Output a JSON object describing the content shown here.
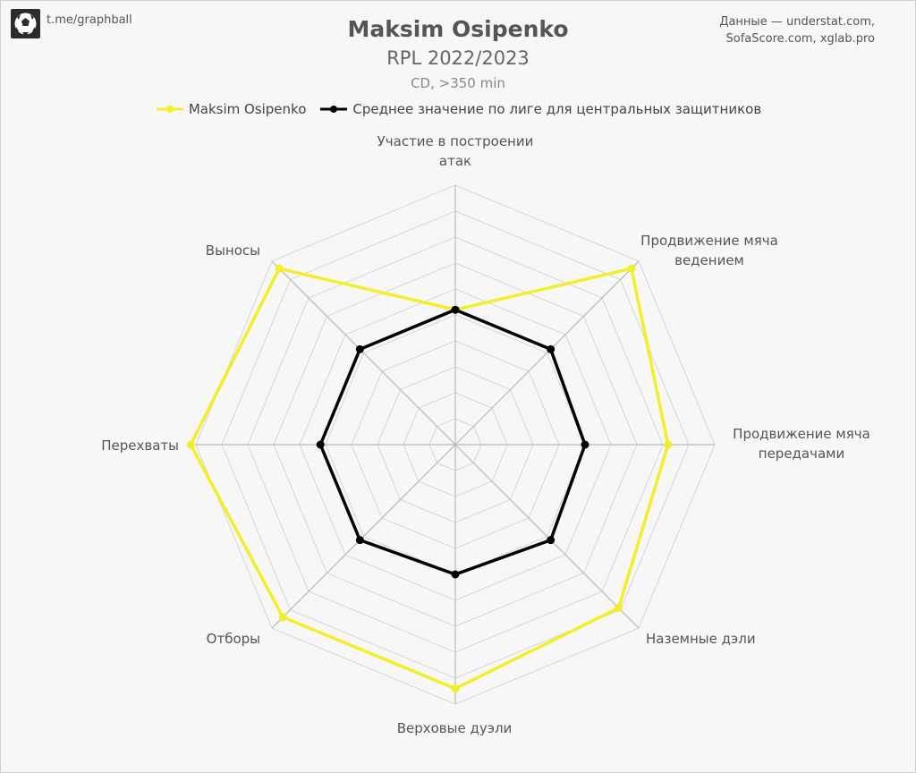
{
  "header": {
    "handle": "t.me/graphball",
    "source_line1": "Данные — understat.com,",
    "source_line2": "SofaScore.com, xglab.pro"
  },
  "chart_data": {
    "type": "radar",
    "title": "Maksim Osipenko",
    "subtitle": "RPL 2022/2023",
    "note": "CD, >350 min",
    "legend_position": "top",
    "grid": true,
    "scale_max": 10,
    "grid_levels": 10,
    "axes": [
      {
        "label_lines": [
          "Участие в построении",
          "атак"
        ]
      },
      {
        "label_lines": [
          "Продвижение мяча",
          "ведением"
        ]
      },
      {
        "label_lines": [
          "Продвижение мяча",
          "передачами"
        ]
      },
      {
        "label_lines": [
          "Наземные дэли"
        ]
      },
      {
        "label_lines": [
          "Верховые дуэли"
        ]
      },
      {
        "label_lines": [
          "Отборы"
        ]
      },
      {
        "label_lines": [
          "Перехваты"
        ]
      },
      {
        "label_lines": [
          "Выносы"
        ]
      }
    ],
    "series": [
      {
        "name": "Maksim Osipenko",
        "color": "#f2ee2c",
        "values": [
          5.2,
          9.6,
          8.2,
          8.9,
          9.4,
          9.4,
          10.2,
          9.6
        ]
      },
      {
        "name": "Среднее значение по лиге для центральных защитников",
        "color": "#000000",
        "values": [
          5.2,
          5.2,
          5.0,
          5.2,
          5.0,
          5.2,
          5.2,
          5.2
        ]
      }
    ]
  }
}
